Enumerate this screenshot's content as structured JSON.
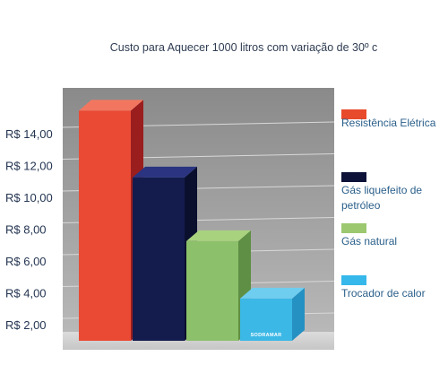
{
  "chart_data": {
    "type": "bar",
    "title": "Custo para Aquecer 1000 litros com variação de 30º c",
    "xlabel": "",
    "ylabel": "",
    "y_ticks": [
      "R$ 2,00",
      "R$ 4,00",
      "R$ 6,00",
      "R$ 8,00",
      "R$ 10,00",
      "R$ 12,00",
      "R$ 14,00"
    ],
    "ylim": [
      2,
      14
    ],
    "grid": true,
    "style": "3d",
    "legend_position": "right",
    "series": [
      {
        "name": "Resistência Elétrica",
        "value": 15.5,
        "front_color": "#ea4a33",
        "top_color": "#f2765f",
        "side_color": "#9a1e1e",
        "legend_color": "#e84a2c"
      },
      {
        "name": "Gás liquefeito de petróleo",
        "value": 11.3,
        "front_color": "#141c4e",
        "top_color": "#2a3480",
        "side_color": "#0a0f2e",
        "legend_color": "#0d1238"
      },
      {
        "name": "Gás natural",
        "value": 7.3,
        "front_color": "#8cc06a",
        "top_color": "#a9d27f",
        "side_color": "#5e8f44",
        "legend_color": "#9cc870"
      },
      {
        "name": "Trocador de calor",
        "value": 3.7,
        "front_color": "#3bb8e6",
        "top_color": "#6fcdf0",
        "side_color": "#2591c2",
        "legend_color": "#36b8ea"
      }
    ],
    "watermark": "SODRAMAR"
  }
}
